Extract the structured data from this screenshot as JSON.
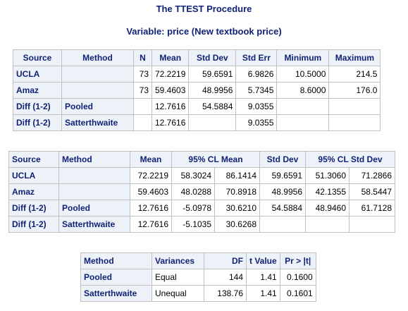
{
  "procedure_title": "The TTEST Procedure",
  "variable_title": "Variable: price (New textbook price)",
  "stats_table": {
    "headers": [
      "Source",
      "Method",
      "N",
      "Mean",
      "Std Dev",
      "Std Err",
      "Minimum",
      "Maximum"
    ],
    "rows": [
      {
        "source": "UCLA",
        "method": "",
        "n": "73",
        "mean": "72.2219",
        "std_dev": "59.6591",
        "std_err": "6.9826",
        "minimum": "10.5000",
        "maximum": "214.5"
      },
      {
        "source": "Amaz",
        "method": "",
        "n": "73",
        "mean": "59.4603",
        "std_dev": "48.9956",
        "std_err": "5.7345",
        "minimum": "8.6000",
        "maximum": "176.0"
      },
      {
        "source": "Diff (1-2)",
        "method": "Pooled",
        "n": "",
        "mean": "12.7616",
        "std_dev": "54.5884",
        "std_err": "9.0355",
        "minimum": "",
        "maximum": ""
      },
      {
        "source": "Diff (1-2)",
        "method": "Satterthwaite",
        "n": "",
        "mean": "12.7616",
        "std_dev": "",
        "std_err": "9.0355",
        "minimum": "",
        "maximum": ""
      }
    ]
  },
  "conf_table": {
    "headers": [
      "Source",
      "Method",
      "Mean",
      "95% CL Mean",
      "Std Dev",
      "95% CL Std Dev"
    ],
    "rows": [
      {
        "source": "UCLA",
        "method": "",
        "mean": "72.2219",
        "cl_mean_low": "58.3024",
        "cl_mean_high": "86.1414",
        "std_dev": "59.6591",
        "cl_sd_low": "51.3060",
        "cl_sd_high": "71.2866"
      },
      {
        "source": "Amaz",
        "method": "",
        "mean": "59.4603",
        "cl_mean_low": "48.0288",
        "cl_mean_high": "70.8918",
        "std_dev": "48.9956",
        "cl_sd_low": "42.1355",
        "cl_sd_high": "58.5447"
      },
      {
        "source": "Diff (1-2)",
        "method": "Pooled",
        "mean": "12.7616",
        "cl_mean_low": "-5.0978",
        "cl_mean_high": "30.6210",
        "std_dev": "54.5884",
        "cl_sd_low": "48.9460",
        "cl_sd_high": "61.7128"
      },
      {
        "source": "Diff (1-2)",
        "method": "Satterthwaite",
        "mean": "12.7616",
        "cl_mean_low": "-5.1035",
        "cl_mean_high": "30.6268",
        "std_dev": "",
        "cl_sd_low": "",
        "cl_sd_high": ""
      }
    ]
  },
  "ttest_table": {
    "headers": [
      "Method",
      "Variances",
      "DF",
      "t Value",
      "Pr > |t|"
    ],
    "rows": [
      {
        "method": "Pooled",
        "variances": "Equal",
        "df": "144",
        "t_value": "1.41",
        "p_value": "0.1600"
      },
      {
        "method": "Satterthwaite",
        "variances": "Unequal",
        "df": "138.76",
        "t_value": "1.41",
        "p_value": "0.1601"
      }
    ]
  }
}
